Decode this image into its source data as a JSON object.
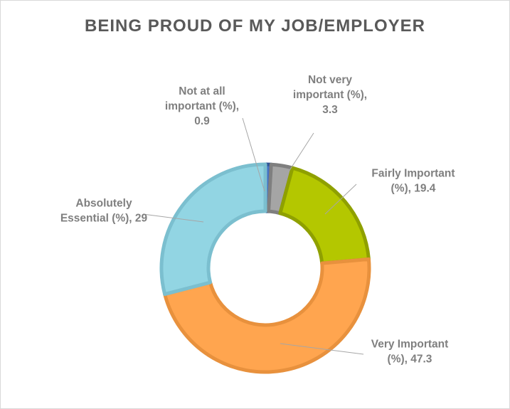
{
  "chart_data": {
    "type": "pie",
    "variant": "doughnut",
    "title": "BEING PROUD OF MY JOB/EMPLOYER",
    "slices": [
      {
        "label_lines": [
          "Not at all",
          "important (%),",
          "0.9"
        ],
        "name": "Not at all important (%)",
        "value": 0.9,
        "color": "#4472c4",
        "border": "#2f5597"
      },
      {
        "label_lines": [
          "Not very",
          "important (%),",
          "3.3"
        ],
        "name": "Not very important (%)",
        "value": 3.3,
        "color": "#a5a5a5",
        "border": "#7f7f7f"
      },
      {
        "label_lines": [
          "Fairly Important",
          "(%), 19.4"
        ],
        "name": "Fairly Important (%)",
        "value": 19.4,
        "color": "#b4c700",
        "border": "#8fa000"
      },
      {
        "label_lines": [
          "Very Important",
          "(%), 47.3"
        ],
        "name": "Very Important (%)",
        "value": 47.3,
        "color": "#ffa54f",
        "border": "#e8913d"
      },
      {
        "label_lines": [
          "Absolutely",
          "Essential (%), 29"
        ],
        "name": "Absolutely Essential (%)",
        "value": 29,
        "color": "#92d5e3",
        "border": "#7bbfcf"
      }
    ],
    "legend": "none"
  }
}
